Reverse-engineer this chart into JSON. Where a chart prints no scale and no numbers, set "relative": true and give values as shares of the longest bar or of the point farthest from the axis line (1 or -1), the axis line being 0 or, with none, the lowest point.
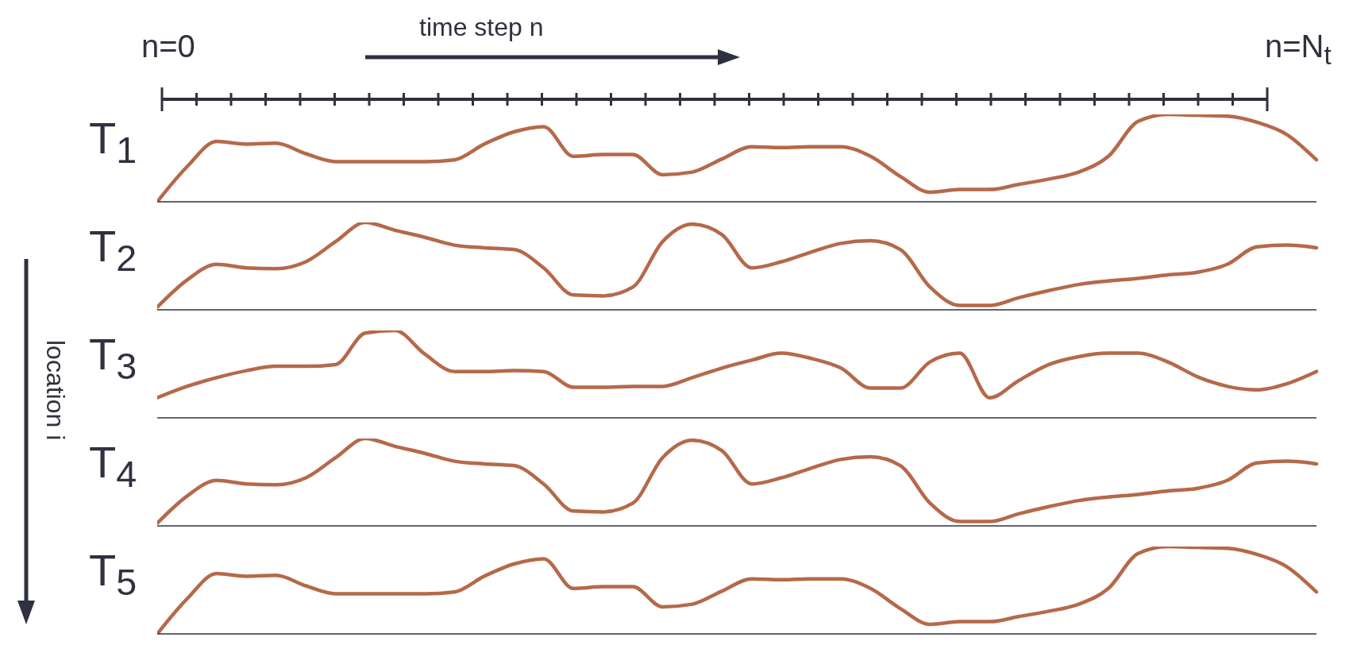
{
  "chart_data": [
    {
      "type": "line",
      "relative": true,
      "ylabel": "T$_{1}$",
      "annotations": [
        "n=0",
        "time step n",
        "n=N$_{t}$",
        "location i"
      ],
      "categories": [
        null,
        null,
        null,
        null,
        null,
        null,
        null,
        null,
        null,
        null,
        null,
        null,
        null,
        null,
        null,
        null,
        null,
        null,
        null,
        null,
        null,
        null,
        null,
        null,
        null,
        null,
        null,
        null,
        null,
        null,
        null,
        null,
        null,
        null,
        null,
        null,
        null,
        null,
        null,
        null
      ],
      "series": [
        {
          "color": "#b5694a",
          "values": [
            0,
            0.4,
            0.69,
            0.66,
            0.67,
            0.55,
            0.46,
            0.46,
            0.46,
            0.46,
            0.48,
            0.66,
            0.8,
            0.86,
            0.52,
            0.54,
            0.54,
            0.31,
            0.34,
            0.49,
            0.63,
            0.62,
            0.63,
            0.63,
            0.52,
            0.29,
            0.11,
            0.14,
            0.14,
            0.2,
            0.26,
            0.34,
            0.52,
            0.92,
            1,
            0.99,
            0.98,
            0.91,
            0.77,
            0.48
          ]
        }
      ]
    },
    {
      "type": "line",
      "relative": true,
      "ylabel": "T$_{2}$",
      "categories": [
        null,
        null,
        null,
        null,
        null,
        null,
        null,
        null,
        null,
        null,
        null,
        null,
        null,
        null,
        null,
        null,
        null,
        null,
        null,
        null,
        null,
        null,
        null,
        null,
        null,
        null,
        null,
        null,
        null,
        null,
        null,
        null,
        null,
        null,
        null,
        null,
        null,
        null,
        null,
        null
      ],
      "series": [
        {
          "color": "#b5694a",
          "values": [
            0.03,
            0.34,
            0.52,
            0.48,
            0.47,
            0.55,
            0.78,
            1,
            0.91,
            0.83,
            0.74,
            0.71,
            0.69,
            0.48,
            0.17,
            0.16,
            0.26,
            0.78,
            0.98,
            0.86,
            0.48,
            0.55,
            0.66,
            0.76,
            0.79,
            0.69,
            0.26,
            0.05,
            0.05,
            0.14,
            0.22,
            0.29,
            0.33,
            0.36,
            0.4,
            0.43,
            0.52,
            0.72,
            0.74,
            0.71
          ]
        }
      ]
    },
    {
      "type": "line",
      "relative": true,
      "ylabel": "T$_{3}$",
      "categories": [
        null,
        null,
        null,
        null,
        null,
        null,
        null,
        null,
        null,
        null,
        null,
        null,
        null,
        null,
        null,
        null,
        null,
        null,
        null,
        null,
        null,
        null,
        null,
        null,
        null,
        null,
        null,
        null,
        null,
        null,
        null,
        null,
        null,
        null,
        null,
        null,
        null,
        null,
        null,
        null
      ],
      "series": [
        {
          "color": "#b5694a",
          "values": [
            0.23,
            0.36,
            0.46,
            0.54,
            0.59,
            0.59,
            0.61,
            0.97,
            1,
            0.73,
            0.53,
            0.53,
            0.54,
            0.53,
            0.35,
            0.35,
            0.36,
            0.36,
            0.46,
            0.57,
            0.66,
            0.74,
            0.68,
            0.57,
            0.34,
            0.34,
            0.64,
            0.74,
            0.23,
            0.43,
            0.61,
            0.7,
            0.74,
            0.74,
            0.64,
            0.47,
            0.36,
            0.32,
            0.39,
            0.53
          ]
        }
      ]
    },
    {
      "type": "line",
      "relative": true,
      "ylabel": "T$_{4}$",
      "categories": [
        null,
        null,
        null,
        null,
        null,
        null,
        null,
        null,
        null,
        null,
        null,
        null,
        null,
        null,
        null,
        null,
        null,
        null,
        null,
        null,
        null,
        null,
        null,
        null,
        null,
        null,
        null,
        null,
        null,
        null,
        null,
        null,
        null,
        null,
        null,
        null,
        null,
        null,
        null,
        null
      ],
      "series": [
        {
          "color": "#b5694a",
          "values": [
            0.03,
            0.34,
            0.52,
            0.48,
            0.47,
            0.55,
            0.78,
            1,
            0.91,
            0.83,
            0.74,
            0.71,
            0.69,
            0.48,
            0.17,
            0.16,
            0.26,
            0.78,
            0.98,
            0.86,
            0.48,
            0.55,
            0.66,
            0.76,
            0.79,
            0.69,
            0.26,
            0.05,
            0.05,
            0.14,
            0.22,
            0.29,
            0.33,
            0.36,
            0.4,
            0.43,
            0.52,
            0.72,
            0.74,
            0.71
          ]
        }
      ]
    },
    {
      "type": "line",
      "relative": true,
      "ylabel": "T$_{5}$",
      "categories": [
        null,
        null,
        null,
        null,
        null,
        null,
        null,
        null,
        null,
        null,
        null,
        null,
        null,
        null,
        null,
        null,
        null,
        null,
        null,
        null,
        null,
        null,
        null,
        null,
        null,
        null,
        null,
        null,
        null,
        null,
        null,
        null,
        null,
        null,
        null,
        null,
        null,
        null,
        null,
        null
      ],
      "series": [
        {
          "color": "#b5694a",
          "values": [
            0,
            0.4,
            0.69,
            0.66,
            0.67,
            0.55,
            0.46,
            0.46,
            0.46,
            0.46,
            0.48,
            0.66,
            0.8,
            0.86,
            0.52,
            0.54,
            0.54,
            0.31,
            0.34,
            0.49,
            0.63,
            0.62,
            0.63,
            0.63,
            0.52,
            0.29,
            0.11,
            0.14,
            0.14,
            0.2,
            0.26,
            0.34,
            0.52,
            0.92,
            1,
            0.99,
            0.98,
            0.91,
            0.77,
            0.48
          ]
        }
      ]
    }
  ]
}
